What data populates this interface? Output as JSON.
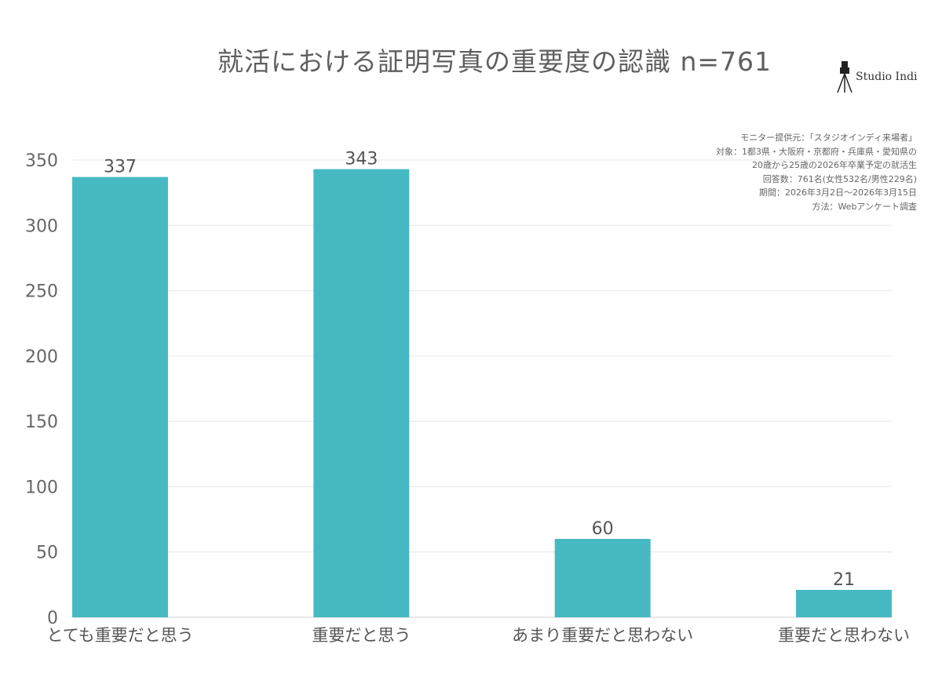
{
  "title": "就活における証明写真の重要度の認識 n=761",
  "logo": {
    "text": "Studio Indi",
    "icon": "camera-tripod-icon"
  },
  "source_notes": [
    "モニター提供元：「スタジオインディ来場者」",
    "対象：1都3県・大阪府・京都府・兵庫県・愛知県の",
    "20歳から25歳の2026年卒業予定の就活生",
    "回答数：761名(女性532名/男性229名)",
    "期間：2026年3月2日〜2026年3月15日",
    "方法：Webアンケート調査"
  ],
  "colors": {
    "bar": "#46b9c3",
    "grid": "#e6e6e6",
    "axis": "#cfcfcf"
  },
  "chart_data": {
    "type": "bar",
    "categories": [
      "とても重要だと思う",
      "重要だと思う",
      "あまり重要だと思わない",
      "重要だと思わない"
    ],
    "values": [
      337,
      343,
      60,
      21
    ],
    "ylim": [
      0,
      350
    ],
    "yticks": [
      0,
      50,
      100,
      150,
      200,
      250,
      300,
      350
    ],
    "grid": true,
    "xlabel": "",
    "ylabel": ""
  }
}
